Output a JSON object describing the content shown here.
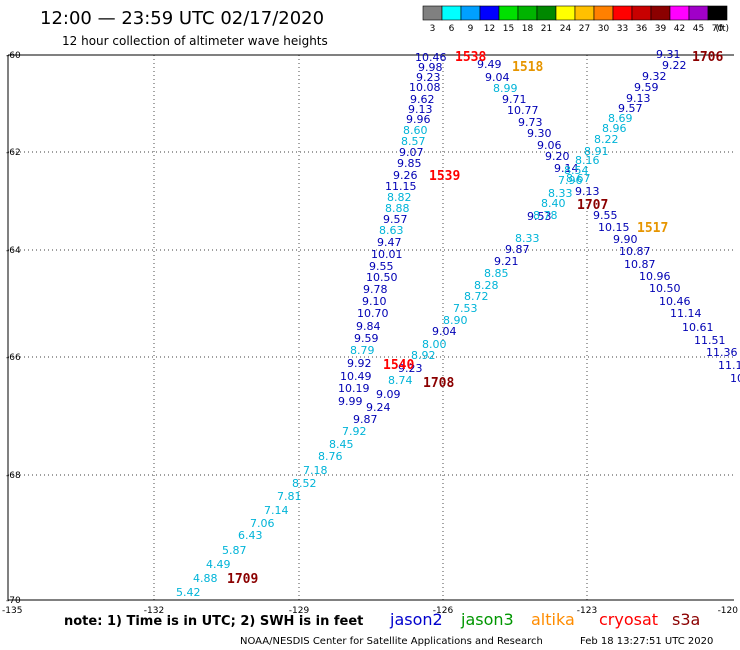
{
  "header": {
    "title": "12:00 — 23:59 UTC 02/17/2020",
    "subtitle": "12 hour collection of altimeter wave heights"
  },
  "legend": {
    "unit": "(ft)",
    "bins": [
      {
        "label": "3",
        "color": "#808080"
      },
      {
        "label": "6",
        "color": "#00ffff"
      },
      {
        "label": "9",
        "color": "#00a0ff"
      },
      {
        "label": "12",
        "color": "#0000ff"
      },
      {
        "label": "15",
        "color": "#00e000"
      },
      {
        "label": "18",
        "color": "#00b400"
      },
      {
        "label": "21",
        "color": "#008800"
      },
      {
        "label": "24",
        "color": "#ffff00"
      },
      {
        "label": "27",
        "color": "#ffc000"
      },
      {
        "label": "30",
        "color": "#ff8000"
      },
      {
        "label": "33",
        "color": "#ff0000"
      },
      {
        "label": "36",
        "color": "#c80000"
      },
      {
        "label": "39",
        "color": "#8b0000"
      },
      {
        "label": "42",
        "color": "#ff00ff"
      },
      {
        "label": "45",
        "color": "#a000c8"
      },
      {
        "label": "70",
        "color": "#000000"
      }
    ]
  },
  "axes": {
    "y_labels": [
      "-60",
      "-62",
      "-64",
      "-66",
      "-68",
      "-70"
    ],
    "x_labels": [
      "-135",
      "-132",
      "-129",
      "-126",
      "-123",
      "-120"
    ]
  },
  "colors": {
    "cyan": "#00b4d8",
    "navy": "#0000b4",
    "red": "#ff0000",
    "orange": "#e69500",
    "maroon": "#8b0000"
  },
  "values": [
    {
      "t": "10.46",
      "c": "navy"
    },
    {
      "t": "9.98",
      "c": "navy"
    },
    {
      "t": "9.23",
      "c": "navy"
    },
    {
      "t": "10.08",
      "c": "navy"
    },
    {
      "t": "9.62",
      "c": "navy"
    },
    {
      "t": "9.13",
      "c": "navy"
    },
    {
      "t": "9.96",
      "c": "navy"
    },
    {
      "t": "8.60",
      "c": "cyan"
    },
    {
      "t": "8.57",
      "c": "cyan"
    },
    {
      "t": "9.07",
      "c": "navy"
    },
    {
      "t": "9.85",
      "c": "navy"
    },
    {
      "t": "9.26",
      "c": "navy"
    },
    {
      "t": "11.15",
      "c": "navy"
    },
    {
      "t": "8.82",
      "c": "cyan"
    },
    {
      "t": "8.88",
      "c": "cyan"
    },
    {
      "t": "9.57",
      "c": "navy"
    },
    {
      "t": "8.63",
      "c": "cyan"
    },
    {
      "t": "9.47",
      "c": "navy"
    },
    {
      "t": "10.01",
      "c": "navy"
    },
    {
      "t": "9.55",
      "c": "navy"
    },
    {
      "t": "10.50",
      "c": "navy"
    },
    {
      "t": "9.78",
      "c": "navy"
    },
    {
      "t": "9.10",
      "c": "navy"
    },
    {
      "t": "10.70",
      "c": "navy"
    },
    {
      "t": "9.84",
      "c": "navy"
    },
    {
      "t": "9.59",
      "c": "navy"
    },
    {
      "t": "8.79",
      "c": "cyan"
    },
    {
      "t": "9.92",
      "c": "navy"
    },
    {
      "t": "10.49",
      "c": "navy"
    },
    {
      "t": "10.19",
      "c": "navy"
    },
    {
      "t": "9.99",
      "c": "navy"
    },
    {
      "t": "9.87",
      "c": "navy"
    },
    {
      "t": "9.24",
      "c": "navy"
    },
    {
      "t": "9.09",
      "c": "navy"
    },
    {
      "t": "8.74",
      "c": "cyan"
    },
    {
      "t": "9.23",
      "c": "navy"
    },
    {
      "t": "8.92",
      "c": "cyan"
    },
    {
      "t": "8.00",
      "c": "cyan"
    },
    {
      "t": "9.04",
      "c": "navy"
    },
    {
      "t": "8.90",
      "c": "cyan"
    },
    {
      "t": "7.53",
      "c": "cyan"
    },
    {
      "t": "8.72",
      "c": "cyan"
    },
    {
      "t": "8.28",
      "c": "cyan"
    },
    {
      "t": "8.85",
      "c": "cyan"
    },
    {
      "t": "9.21",
      "c": "navy"
    },
    {
      "t": "9.87",
      "c": "navy"
    },
    {
      "t": "8.33",
      "c": "cyan"
    },
    {
      "t": "9.53",
      "c": "navy"
    },
    {
      "t": "8.78",
      "c": "cyan"
    },
    {
      "t": "8.40",
      "c": "cyan"
    },
    {
      "t": "8.33",
      "c": "cyan"
    },
    {
      "t": "7.92",
      "c": "cyan"
    },
    {
      "t": "8.45",
      "c": "cyan"
    },
    {
      "t": "8.76",
      "c": "cyan"
    },
    {
      "t": "7.18",
      "c": "cyan"
    },
    {
      "t": "8.52",
      "c": "cyan"
    },
    {
      "t": "7.81",
      "c": "cyan"
    },
    {
      "t": "7.14",
      "c": "cyan"
    },
    {
      "t": "7.06",
      "c": "cyan"
    },
    {
      "t": "6.43",
      "c": "cyan"
    },
    {
      "t": "5.87",
      "c": "cyan"
    },
    {
      "t": "4.49",
      "c": "cyan"
    },
    {
      "t": "4.88",
      "c": "cyan"
    },
    {
      "t": "5.42",
      "c": "cyan"
    },
    {
      "t": "9.49",
      "c": "navy"
    },
    {
      "t": "9.04",
      "c": "navy"
    },
    {
      "t": "8.99",
      "c": "cyan"
    },
    {
      "t": "9.71",
      "c": "navy"
    },
    {
      "t": "10.77",
      "c": "navy"
    },
    {
      "t": "9.73",
      "c": "navy"
    },
    {
      "t": "9.30",
      "c": "navy"
    },
    {
      "t": "9.06",
      "c": "navy"
    },
    {
      "t": "9.20",
      "c": "navy"
    },
    {
      "t": "9.14",
      "c": "navy"
    },
    {
      "t": "9.13",
      "c": "navy"
    },
    {
      "t": "9.55",
      "c": "navy"
    },
    {
      "t": "10.15",
      "c": "navy"
    },
    {
      "t": "9.90",
      "c": "navy"
    },
    {
      "t": "10.87",
      "c": "navy"
    },
    {
      "t": "10.87",
      "c": "navy"
    },
    {
      "t": "10.96",
      "c": "navy"
    },
    {
      "t": "10.50",
      "c": "navy"
    },
    {
      "t": "10.46",
      "c": "navy"
    },
    {
      "t": "11.14",
      "c": "navy"
    },
    {
      "t": "10.61",
      "c": "navy"
    },
    {
      "t": "11.51",
      "c": "navy"
    },
    {
      "t": "11.36",
      "c": "navy"
    },
    {
      "t": "11.1",
      "c": "navy"
    },
    {
      "t": "10",
      "c": "navy"
    },
    {
      "t": "9.31",
      "c": "navy"
    },
    {
      "t": "9.22",
      "c": "navy"
    },
    {
      "t": "9.32",
      "c": "navy"
    },
    {
      "t": "9.59",
      "c": "navy"
    },
    {
      "t": "9.13",
      "c": "navy"
    },
    {
      "t": "9.57",
      "c": "navy"
    },
    {
      "t": "8.69",
      "c": "cyan"
    },
    {
      "t": "8.96",
      "c": "cyan"
    },
    {
      "t": "8.22",
      "c": "cyan"
    },
    {
      "t": "8.91",
      "c": "cyan"
    },
    {
      "t": "8.16",
      "c": "cyan"
    },
    {
      "t": "8.54",
      "c": "cyan"
    },
    {
      "t": "8.67",
      "c": "cyan"
    },
    {
      "t": "7.96",
      "c": "cyan"
    }
  ],
  "pass_labels": [
    {
      "t": "1538",
      "c": "red"
    },
    {
      "t": "1518",
      "c": "orange"
    },
    {
      "t": "1706",
      "c": "maroon"
    },
    {
      "t": "1539",
      "c": "red"
    },
    {
      "t": "1707",
      "c": "maroon"
    },
    {
      "t": "1517",
      "c": "orange"
    },
    {
      "t": "1540",
      "c": "red"
    },
    {
      "t": "1708",
      "c": "maroon"
    },
    {
      "t": "1709",
      "c": "maroon"
    }
  ],
  "note": "note: 1) Time is in UTC; 2) SWH is in feet",
  "satellites": [
    {
      "name": "jason2",
      "color": "#0000cd"
    },
    {
      "name": "jason3",
      "color": "#009600"
    },
    {
      "name": "altika",
      "color": "#ff8c00"
    },
    {
      "name": "cryosat",
      "color": "#ff0000"
    },
    {
      "name": "s3a",
      "color": "#8b0000"
    }
  ],
  "footer": {
    "credit": "NOAA/NESDIS Center for Satellite Applications and Research",
    "timestamp": "Feb 18 13:27:51 UTC 2020"
  }
}
